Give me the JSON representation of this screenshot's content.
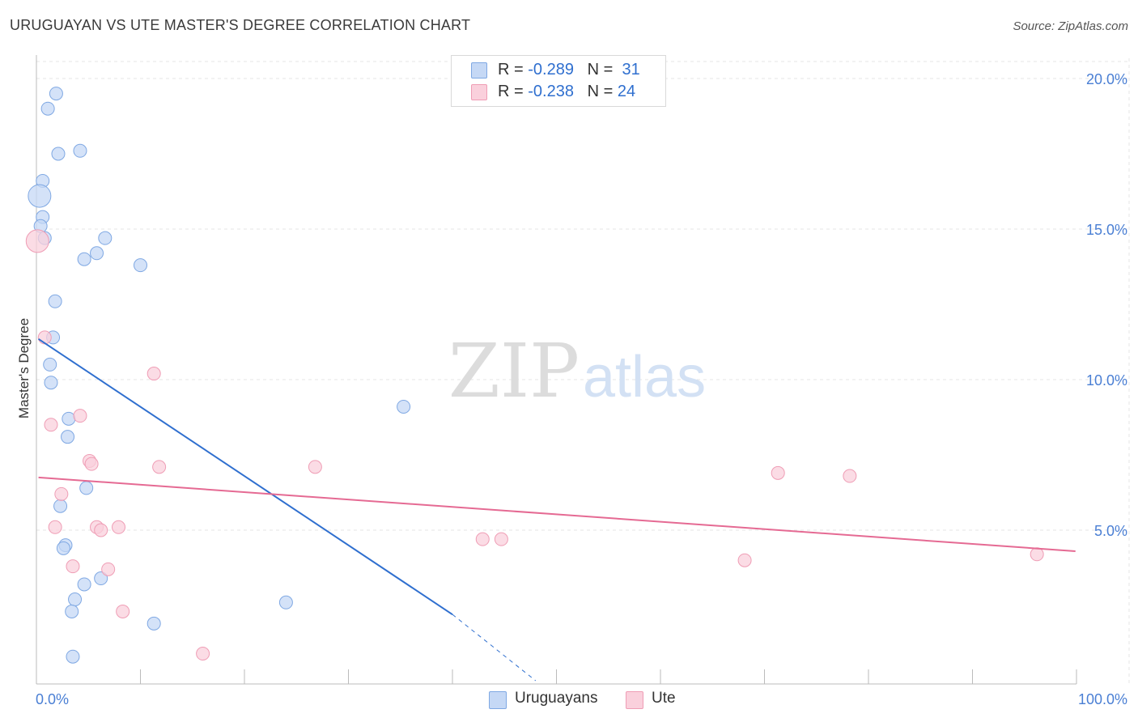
{
  "title": "URUGUAYAN VS UTE MASTER'S DEGREE CORRELATION CHART",
  "source": "Source: ZipAtlas.com",
  "watermark": {
    "zip": "ZIP",
    "atlas": "atlas"
  },
  "legend": {
    "rows": [
      {
        "r_label": "R = ",
        "r_value": "-0.289",
        "n_label": "N = ",
        "n_value": "31"
      },
      {
        "r_label": "R = ",
        "r_value": "-0.238",
        "n_label": "N = ",
        "n_value": "24"
      }
    ]
  },
  "bottom_legend": {
    "series1": "Uruguayans",
    "series2": "Ute"
  },
  "colors": {
    "blue_fill": "#c5d8f5",
    "blue_stroke": "#7fa8e3",
    "blue_line": "#2f6fcf",
    "pink_fill": "#fad0dc",
    "pink_stroke": "#ef9db5",
    "pink_line": "#e56a93",
    "tick_label": "#4a7fd4",
    "grid": "#e5e5e5"
  },
  "chart_data": {
    "type": "scatter",
    "title": "URUGUAYAN VS UTE MASTER'S DEGREE CORRELATION CHART",
    "xlabel": "",
    "ylabel": "Master's Degree",
    "xlim": [
      0,
      100
    ],
    "ylim": [
      0,
      20.8
    ],
    "x_tick_labels": [
      "0.0%",
      "100.0%"
    ],
    "y_ticks": [
      5,
      10,
      15,
      20
    ],
    "y_tick_labels": [
      "5.0%",
      "10.0%",
      "15.0%",
      "20.0%"
    ],
    "grid": true,
    "legend_position": "top-center",
    "series": [
      {
        "name": "Uruguayans",
        "points": [
          [
            1.9,
            19.5
          ],
          [
            1.1,
            19.0
          ],
          [
            2.1,
            17.5
          ],
          [
            4.2,
            17.6
          ],
          [
            0.6,
            16.6
          ],
          [
            0.3,
            16.1
          ],
          [
            0.6,
            15.4
          ],
          [
            0.4,
            15.1
          ],
          [
            0.8,
            14.7
          ],
          [
            6.6,
            14.7
          ],
          [
            5.8,
            14.2
          ],
          [
            4.6,
            14.0
          ],
          [
            10.0,
            13.8
          ],
          [
            1.8,
            12.6
          ],
          [
            1.6,
            11.4
          ],
          [
            1.3,
            10.5
          ],
          [
            1.4,
            9.9
          ],
          [
            35.3,
            9.1
          ],
          [
            3.1,
            8.7
          ],
          [
            3.0,
            8.1
          ],
          [
            4.8,
            6.4
          ],
          [
            2.3,
            5.8
          ],
          [
            2.8,
            4.5
          ],
          [
            2.6,
            4.4
          ],
          [
            6.2,
            3.4
          ],
          [
            4.6,
            3.2
          ],
          [
            3.7,
            2.7
          ],
          [
            24.0,
            2.6
          ],
          [
            3.4,
            2.3
          ],
          [
            11.3,
            1.9
          ],
          [
            3.5,
            0.8
          ]
        ],
        "trend": {
          "x0": 0.2,
          "y0": 11.35,
          "x1": 40.0,
          "y1": 2.2,
          "dash_x1": 48.0,
          "dash_y1": 0.0
        }
      },
      {
        "name": "Ute",
        "points": [
          [
            0.1,
            14.6
          ],
          [
            0.8,
            11.4
          ],
          [
            11.3,
            10.2
          ],
          [
            1.4,
            8.5
          ],
          [
            4.2,
            8.8
          ],
          [
            5.1,
            7.3
          ],
          [
            5.3,
            7.2
          ],
          [
            11.8,
            7.1
          ],
          [
            26.8,
            7.1
          ],
          [
            71.3,
            6.9
          ],
          [
            78.2,
            6.8
          ],
          [
            2.4,
            6.2
          ],
          [
            1.8,
            5.1
          ],
          [
            5.8,
            5.1
          ],
          [
            6.2,
            5.0
          ],
          [
            7.9,
            5.1
          ],
          [
            42.9,
            4.7
          ],
          [
            44.7,
            4.7
          ],
          [
            96.2,
            4.2
          ],
          [
            3.5,
            3.8
          ],
          [
            68.1,
            4.0
          ],
          [
            6.9,
            3.7
          ],
          [
            8.3,
            2.3
          ],
          [
            16.0,
            0.9
          ]
        ],
        "trend": {
          "x0": 0.2,
          "y0": 6.75,
          "x1": 99.9,
          "y1": 4.3
        }
      }
    ]
  }
}
